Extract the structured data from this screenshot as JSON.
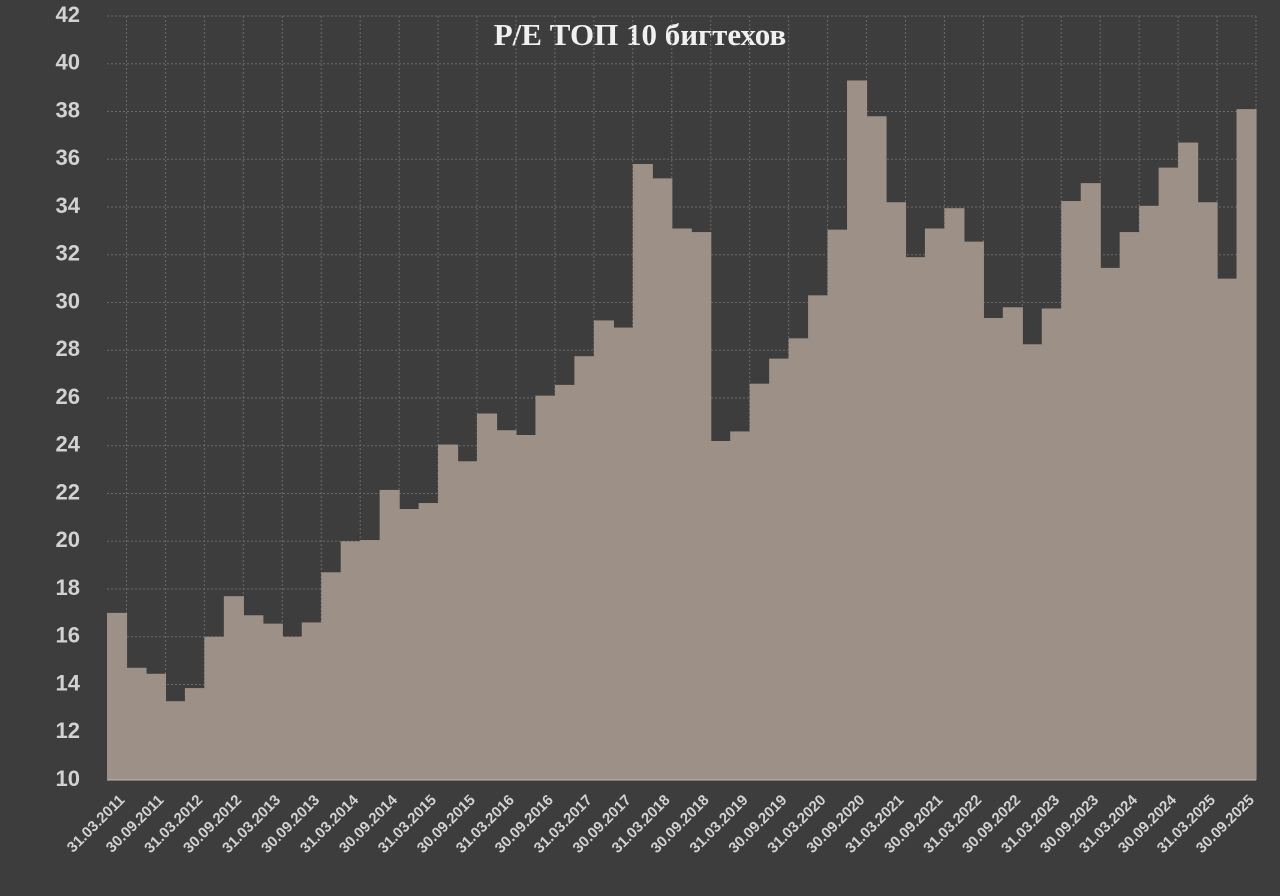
{
  "chart_data": {
    "type": "bar",
    "title": "P/E ТОП 10 бигтехов",
    "categories": [
      "31.03.2011",
      null,
      "30.09.2011",
      null,
      "31.03.2012",
      null,
      "30.09.2012",
      null,
      "31.03.2013",
      null,
      "30.09.2013",
      null,
      "31.03.2014",
      null,
      "30.09.2014",
      null,
      "31.03.2015",
      null,
      "30.09.2015",
      null,
      "31.03.2016",
      null,
      "30.09.2016",
      null,
      "31.03.2017",
      null,
      "30.09.2017",
      null,
      "31.03.2018",
      null,
      "30.09.2018",
      null,
      "31.03.2019",
      null,
      "30.09.2019",
      null,
      "31.03.2020",
      null,
      "30.09.2020",
      null,
      "31.03.2021",
      null,
      "30.09.2021",
      null,
      "31.03.2022",
      null,
      "30.09.2022",
      null,
      "31.03.2023",
      null,
      "30.09.2023",
      null,
      "31.03.2024",
      null,
      "30.09.2024",
      null,
      "31.03.2025",
      null,
      "30.09.2025"
    ],
    "values": [
      17.0,
      14.7,
      14.45,
      13.3,
      13.85,
      16.0,
      17.7,
      16.9,
      16.55,
      16.0,
      16.6,
      18.7,
      20.0,
      20.05,
      22.15,
      21.35,
      21.6,
      24.05,
      23.35,
      25.35,
      24.65,
      24.45,
      26.1,
      26.55,
      27.75,
      29.25,
      28.95,
      35.8,
      35.2,
      33.1,
      32.95,
      24.2,
      24.6,
      26.6,
      27.65,
      28.5,
      30.3,
      33.05,
      39.3,
      37.8,
      34.2,
      31.9,
      33.1,
      33.95,
      32.55,
      29.35,
      29.8,
      28.25,
      29.75,
      34.25,
      35.0,
      31.45,
      32.95,
      34.05,
      35.65,
      36.7,
      34.2,
      31.0,
      38.1
    ],
    "color": "#9d9087",
    "ylim": [
      10,
      42
    ],
    "yticks": [
      10,
      12,
      14,
      16,
      18,
      20,
      22,
      24,
      26,
      28,
      30,
      32,
      34,
      36,
      38,
      40,
      42
    ],
    "grid": true
  }
}
